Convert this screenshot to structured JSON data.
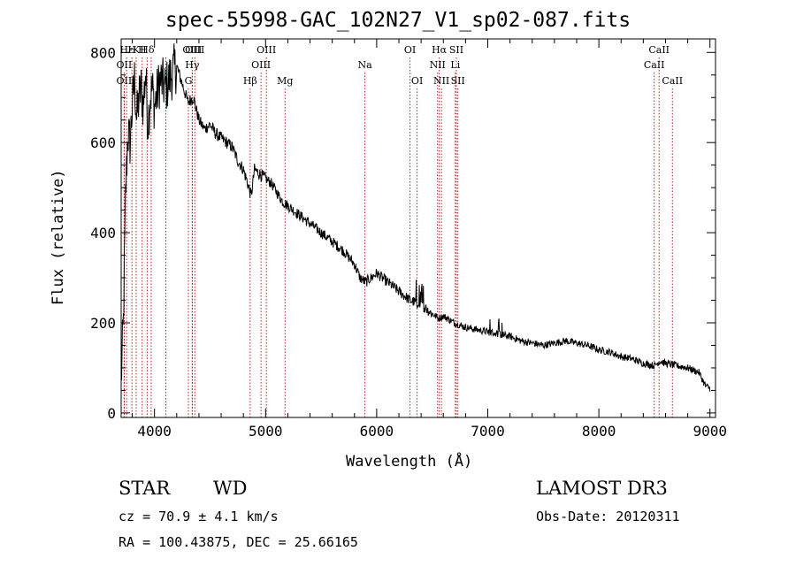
{
  "chart_data": {
    "type": "line",
    "title": "spec-55998-GAC_102N27_V1_sp02-087.fits",
    "xlabel": "Wavelength (Å)",
    "ylabel": "Flux (relative)",
    "xlim": [
      3700,
      9050
    ],
    "ylim": [
      -10,
      830
    ],
    "xticks": [
      4000,
      5000,
      6000,
      7000,
      8000,
      9000
    ],
    "yticks": [
      0,
      200,
      400,
      600,
      800
    ],
    "series": [
      {
        "name": "flux",
        "x": [
          3700,
          3720,
          3740,
          3760,
          3780,
          3800,
          3820,
          3840,
          3860,
          3880,
          3900,
          3920,
          3940,
          3960,
          3980,
          4000,
          4050,
          4100,
          4150,
          4200,
          4250,
          4300,
          4350,
          4400,
          4450,
          4500,
          4550,
          4600,
          4650,
          4700,
          4750,
          4800,
          4850,
          4870,
          4900,
          4950,
          5000,
          5050,
          5100,
          5150,
          5200,
          5300,
          5400,
          5500,
          5600,
          5700,
          5800,
          5850,
          5900,
          5950,
          6000,
          6050,
          6100,
          6150,
          6200,
          6300,
          6400,
          6500,
          6560,
          6600,
          6700,
          6800,
          6900,
          7000,
          7100,
          7200,
          7300,
          7400,
          7500,
          7600,
          7700,
          7800,
          7900,
          8000,
          8100,
          8200,
          8300,
          8400,
          8500,
          8550,
          8600,
          8700,
          8800,
          8850,
          8900,
          8960,
          9000
        ],
        "values": [
          70,
          200,
          480,
          620,
          600,
          680,
          740,
          650,
          700,
          720,
          680,
          760,
          640,
          700,
          720,
          680,
          740,
          720,
          750,
          770,
          730,
          690,
          700,
          650,
          630,
          640,
          620,
          610,
          600,
          590,
          560,
          540,
          500,
          480,
          540,
          530,
          520,
          510,
          490,
          470,
          460,
          440,
          420,
          400,
          380,
          360,
          330,
          300,
          290,
          300,
          310,
          300,
          290,
          280,
          270,
          250,
          240,
          220,
          210,
          215,
          200,
          190,
          185,
          180,
          175,
          170,
          160,
          155,
          150,
          155,
          160,
          155,
          150,
          140,
          135,
          125,
          120,
          110,
          105,
          115,
          110,
          105,
          100,
          95,
          90,
          60,
          55
        ]
      }
    ],
    "lines": [
      {
        "label": "OII",
        "x": 3727,
        "row": 2
      },
      {
        "label": "OII",
        "x": 3727,
        "row": 3
      },
      {
        "label": "Hε",
        "x": 3749,
        "row": 1
      },
      {
        "label": "H",
        "x": 3797,
        "row": 1
      },
      {
        "label": "K",
        "x": 3835,
        "row": 1
      },
      {
        "label": "H",
        "x": 3889,
        "row": 1
      },
      {
        "label": "Hδ",
        "x": 3934,
        "row": 1
      },
      {
        "label": "",
        "x": 3970,
        "row": 1
      },
      {
        "label": "",
        "x": 4102,
        "row": 1
      },
      {
        "label": "OIII",
        "x": 4340,
        "row": 1
      },
      {
        "label": "Hγ",
        "x": 4340,
        "row": 2
      },
      {
        "label": "G",
        "x": 4305,
        "row": 3
      },
      {
        "label": "OIII",
        "x": 4363,
        "row": 1
      },
      {
        "label": "Hβ",
        "x": 4861,
        "row": 3
      },
      {
        "label": "OIII",
        "x": 4959,
        "row": 2
      },
      {
        "label": "OIII",
        "x": 5007,
        "row": 1
      },
      {
        "label": "Mg",
        "x": 5175,
        "row": 3
      },
      {
        "label": "Na",
        "x": 5894,
        "row": 2
      },
      {
        "label": "OI",
        "x": 6300,
        "row": 1
      },
      {
        "label": "OI",
        "x": 6364,
        "row": 3
      },
      {
        "label": "Hα",
        "x": 6563,
        "row": 1
      },
      {
        "label": "NII",
        "x": 6548,
        "row": 2
      },
      {
        "label": "NII",
        "x": 6583,
        "row": 3
      },
      {
        "label": "SII",
        "x": 6717,
        "row": 1
      },
      {
        "label": "Li",
        "x": 6708,
        "row": 2
      },
      {
        "label": "SII",
        "x": 6731,
        "row": 3
      },
      {
        "label": "CaII",
        "x": 8498,
        "row": 2
      },
      {
        "label": "CaII",
        "x": 8542,
        "row": 1
      },
      {
        "label": "CaII",
        "x": 8662,
        "row": 3
      }
    ]
  },
  "info": {
    "class": "STAR",
    "subclass": "WD",
    "survey": "LAMOST DR3",
    "cz": "cz = 70.9 ± 4.1 km/s",
    "obs_date": "Obs-Date: 20120311",
    "coords": "RA = 100.43875, DEC =  25.66165"
  }
}
